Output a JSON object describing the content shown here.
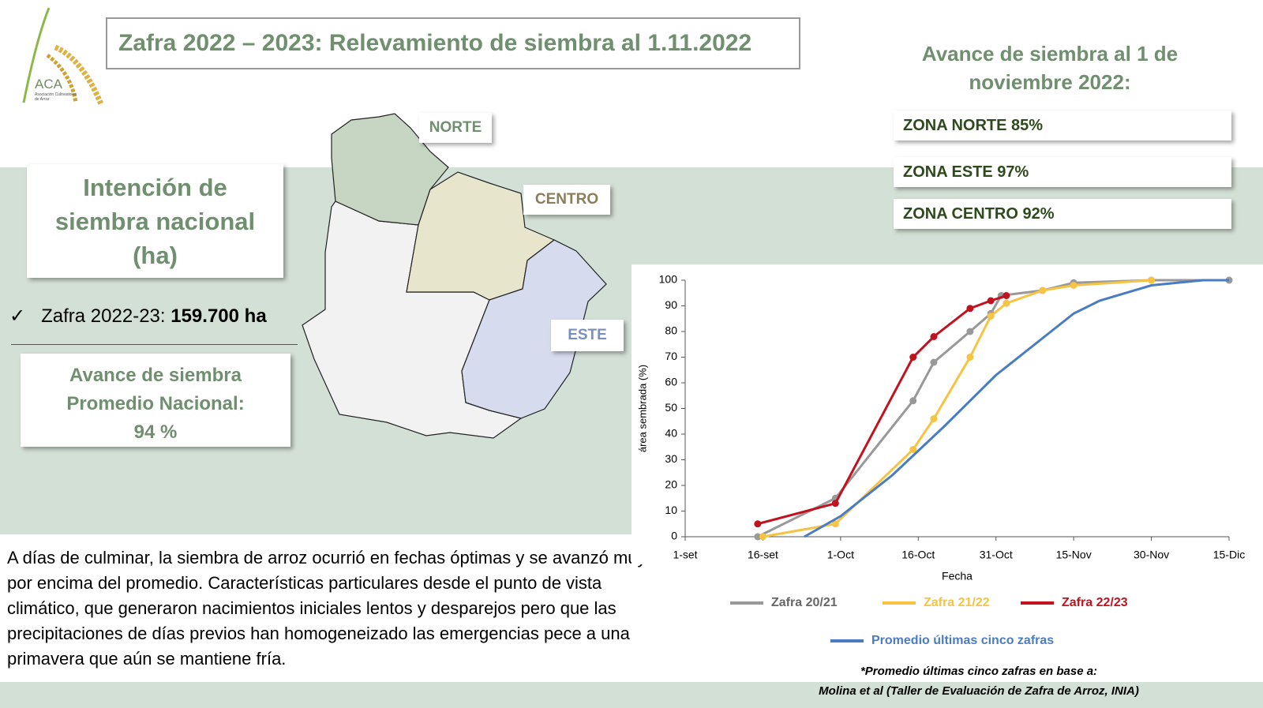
{
  "header": {
    "title": "Zafra 2022 – 2023: Relevamiento de siembra al 1.11.2022"
  },
  "logo": {
    "name": "ACA",
    "subtitle": "Asociación Cultivadores de Arroz"
  },
  "intention": {
    "title": "Intención de siembra nacional (ha)",
    "item_label": "Zafra 2022-23:",
    "item_value": "159.700 ha"
  },
  "national": {
    "title": "Avance de siembra Promedio Nacional:",
    "value": "94 %"
  },
  "map": {
    "labels": [
      "NORTE",
      "CENTRO",
      "ESTE"
    ]
  },
  "zones": {
    "title": "Avance de siembra al 1 de noviembre 2022:",
    "items": [
      "ZONA NORTE 85%",
      "ZONA ESTE  97%",
      "ZONA CENTRO 92%"
    ]
  },
  "body": "A días de culminar, la siembra de arroz ocurrió en fechas óptimas y se avanzó muy por encima del promedio. Características particulares desde el punto de vista climático, que generaron nacimientos iniciales lentos y desparejos pero que las precipitaciones de días previos han homogeneizado las emergencias pece a una primavera que aún se mantiene fría.",
  "footnote": [
    "*Promedio últimas cinco zafras en base a:",
    "Molina et al (Taller de Evaluación de Zafra de Arroz, INIA)"
  ],
  "chart_data": {
    "type": "line",
    "x_label": "Fecha",
    "y_label": "área sembrada (%)",
    "xlim": [
      0,
      105
    ],
    "xticks": [
      {
        "value": 0,
        "label": "1-set"
      },
      {
        "value": 15,
        "label": "16-set"
      },
      {
        "value": 30,
        "label": "1-Oct"
      },
      {
        "value": 45,
        "label": "16-Oct"
      },
      {
        "value": 60,
        "label": "31-Oct"
      },
      {
        "value": 75,
        "label": "15-Nov"
      },
      {
        "value": 90,
        "label": "30-Nov"
      },
      {
        "value": 105,
        "label": "15-Dic"
      }
    ],
    "ylim": [
      0,
      100
    ],
    "yticks": [
      0,
      10,
      20,
      30,
      40,
      50,
      60,
      70,
      80,
      90,
      100
    ],
    "series": [
      {
        "name": "Zafra 20/21",
        "color": "#999999",
        "markers": true,
        "x": [
          14,
          29,
          44,
          48,
          55,
          59,
          61,
          69,
          75,
          90,
          105
        ],
        "values": [
          0,
          15,
          53,
          68,
          80,
          87,
          94,
          96,
          99,
          100,
          100
        ]
      },
      {
        "name": "Zafra 21/22",
        "color": "#f6c342",
        "markers": true,
        "x": [
          15,
          29,
          44,
          48,
          55,
          59,
          62,
          69,
          75,
          90
        ],
        "values": [
          0,
          5,
          34,
          46,
          70,
          86,
          91,
          96,
          98,
          100
        ]
      },
      {
        "name": "Zafra 22/23",
        "color": "#c0121f",
        "markers": true,
        "x": [
          14,
          29,
          44,
          48,
          55,
          59,
          62
        ],
        "values": [
          5,
          13,
          70,
          78,
          89,
          92,
          94
        ]
      },
      {
        "name": "Promedio últimas cinco zafras",
        "color": "#4a7cc4",
        "markers": false,
        "x": [
          23,
          30,
          40,
          50,
          60,
          70,
          75,
          80,
          90,
          100,
          105
        ],
        "values": [
          0,
          8,
          24,
          43,
          63,
          79,
          87,
          92,
          98,
          100,
          100
        ]
      }
    ]
  }
}
